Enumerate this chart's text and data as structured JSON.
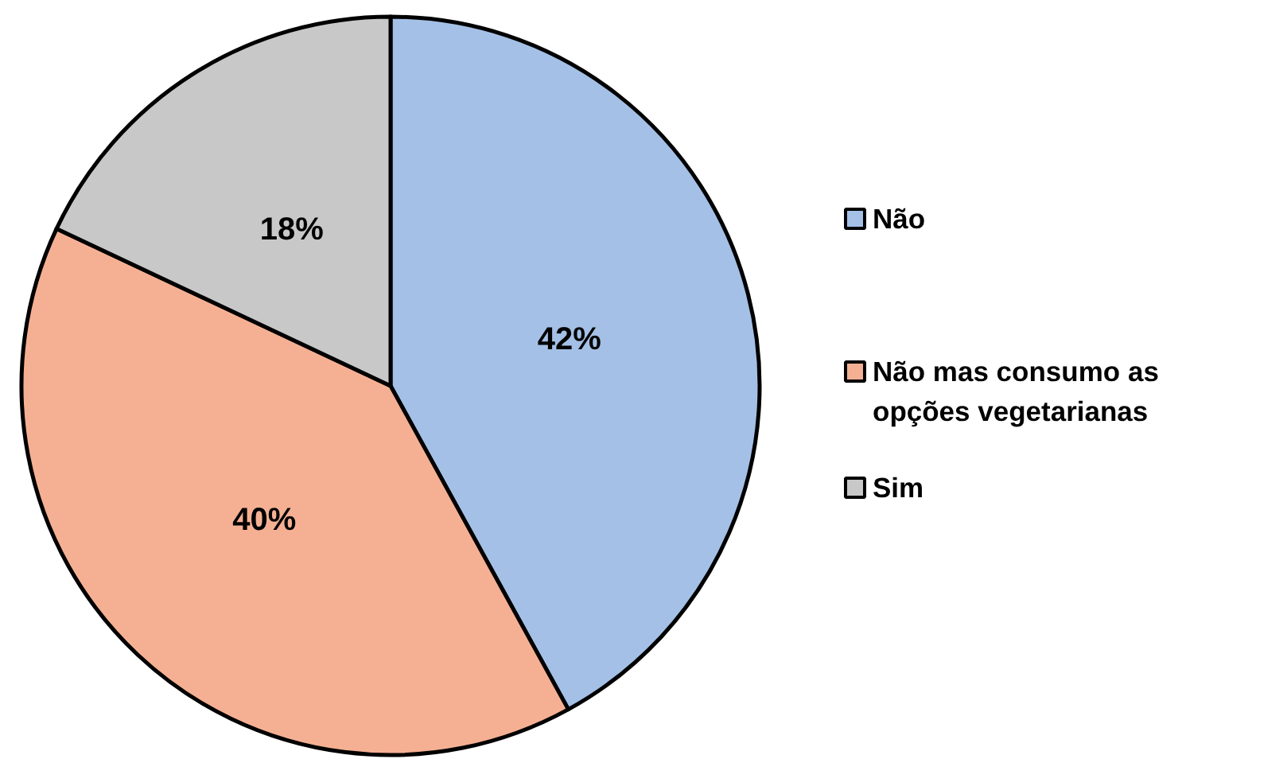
{
  "chart_data": {
    "type": "pie",
    "categories": [
      "Não",
      "Não mas consumo as opções vegetarianas",
      "Sim"
    ],
    "values": [
      42,
      40,
      18
    ],
    "colors": [
      "#a4c0e6",
      "#f5b093",
      "#c8c8c8"
    ],
    "value_labels": [
      "42%",
      "40%",
      "18%"
    ],
    "legend": "right"
  }
}
